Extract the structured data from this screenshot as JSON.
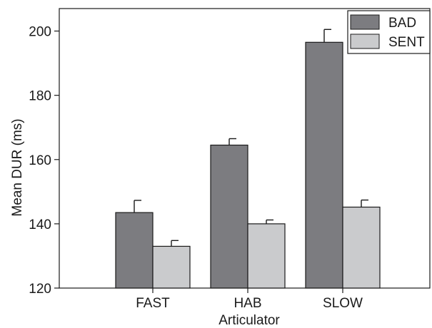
{
  "chart_data": {
    "type": "bar",
    "xlabel": "Articulator",
    "ylabel": "Mean DUR (ms)",
    "categories": [
      "FAST",
      "HAB",
      "SLOW"
    ],
    "ylim": [
      120,
      207
    ],
    "yticks": [
      120,
      140,
      160,
      180,
      200
    ],
    "grid": false,
    "legend_position": "top-right",
    "series": [
      {
        "name": "BAD",
        "color": "#7c7c80",
        "values": [
          143.5,
          164.5,
          196.5
        ],
        "error": [
          3.8,
          2.0,
          4.0
        ]
      },
      {
        "name": "SENT",
        "color": "#cacbcd",
        "values": [
          133.0,
          140.0,
          145.2
        ],
        "error": [
          1.8,
          1.2,
          2.2
        ]
      }
    ]
  }
}
